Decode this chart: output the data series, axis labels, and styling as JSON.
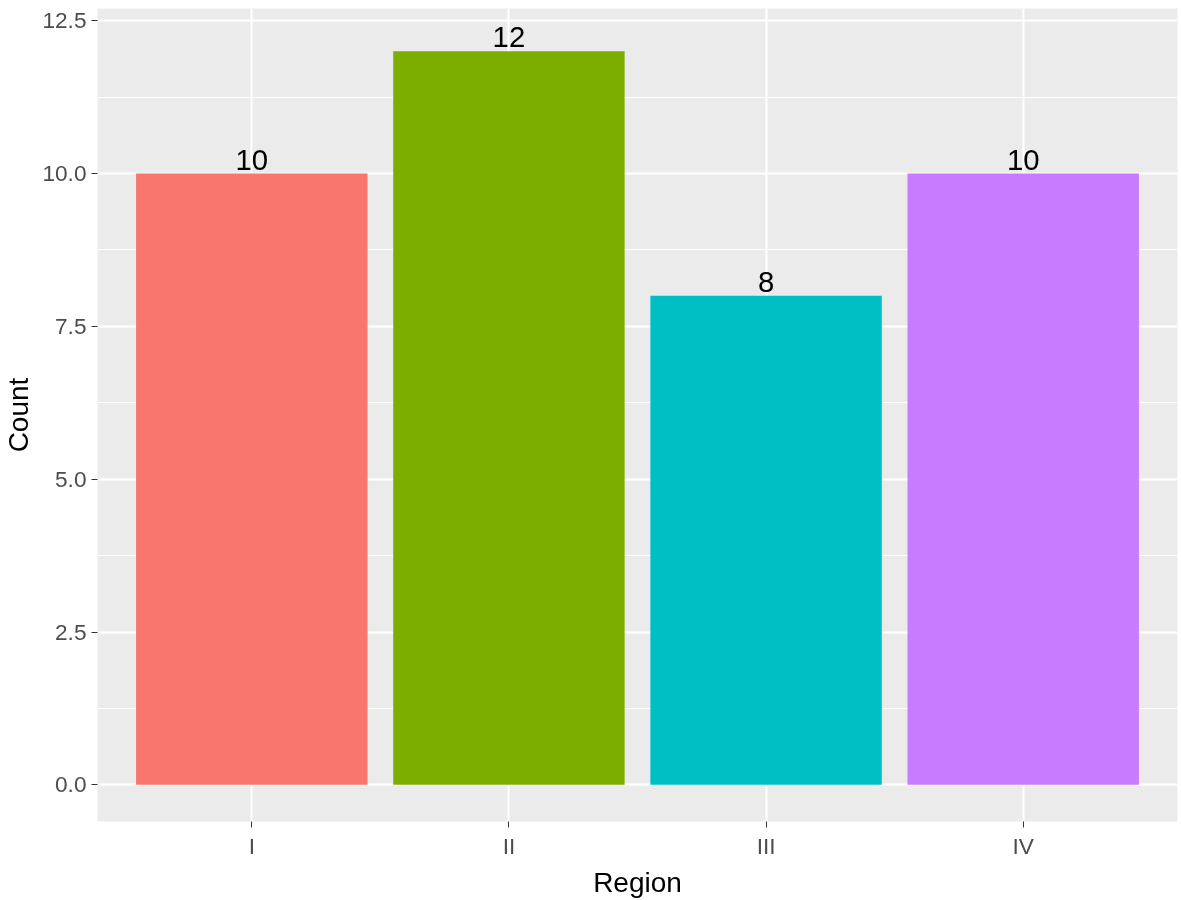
{
  "chart_data": {
    "type": "bar",
    "xlabel": "Region",
    "ylabel": "Count",
    "categories": [
      "I",
      "II",
      "III",
      "IV"
    ],
    "values": [
      10,
      12,
      8,
      10
    ],
    "colors": [
      "#f8766d",
      "#7cae00",
      "#00bfc4",
      "#c77cff"
    ],
    "ylim": [
      -0.6,
      12.7
    ],
    "yticks": [
      {
        "value": 0,
        "label": "0.0"
      },
      {
        "value": 2.5,
        "label": "2.5"
      },
      {
        "value": 5,
        "label": "5.0"
      },
      {
        "value": 7.5,
        "label": "7.5"
      },
      {
        "value": 10,
        "label": "10.0"
      },
      {
        "value": 12.5,
        "label": "12.5"
      }
    ],
    "grid": true,
    "data_labels": true
  }
}
